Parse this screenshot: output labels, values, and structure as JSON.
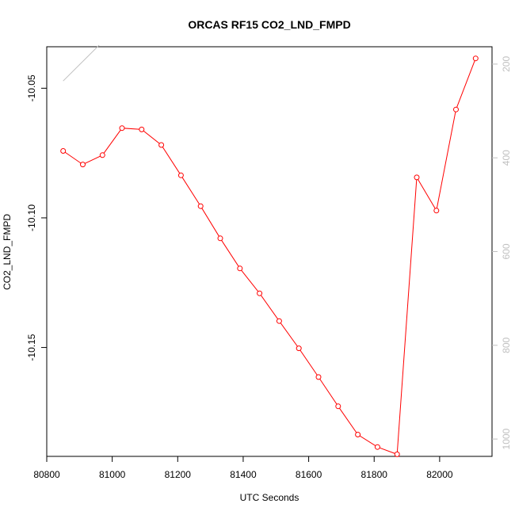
{
  "chart_data": {
    "type": "line",
    "title": "ORCAS RF15 CO2_LND_FMPD",
    "xlabel": "UTC Seconds",
    "ylabel": "CO2_LND_FMPD",
    "xlim": [
      80800,
      82160
    ],
    "ylim": [
      -10.192,
      -10.034
    ],
    "x_ticks": [
      80800,
      81000,
      81200,
      81400,
      81600,
      81800,
      82000
    ],
    "y_ticks": [
      -10.05,
      -10.1,
      -10.15
    ],
    "y_tick_labels": [
      "-10.05",
      "-10.10",
      "-10.15"
    ],
    "right_axis": {
      "ticks": [
        200,
        400,
        600,
        800,
        1000
      ],
      "tick_labels": [
        "200",
        "400",
        "600",
        "800",
        "1000"
      ],
      "lim": [
        1037,
        163
      ],
      "color": "#c0c0c0"
    },
    "series": [
      {
        "color": "#ff0000",
        "marker": "open-circle",
        "x": [
          80850,
          80910,
          80970,
          81030,
          81090,
          81150,
          81210,
          81270,
          81330,
          81390,
          81450,
          81510,
          81570,
          81630,
          81690,
          81750,
          81810,
          81870,
          81930,
          81990,
          82050,
          82110
        ],
        "y": [
          -10.0742,
          -10.0794,
          -10.0758,
          -10.0654,
          -10.0659,
          -10.0719,
          -10.0836,
          -10.0955,
          -10.1079,
          -10.1195,
          -10.1291,
          -10.1398,
          -10.1503,
          -10.1614,
          -10.1727,
          -10.1836,
          -10.1884,
          -10.1912,
          -10.0844,
          -10.0972,
          -10.0582,
          -10.0385
        ]
      },
      {
        "color": "#c0c0c0",
        "marker": "none",
        "x": [
          80850,
          80960
        ],
        "y": [
          -10.0472,
          -10.0334
        ]
      }
    ]
  }
}
